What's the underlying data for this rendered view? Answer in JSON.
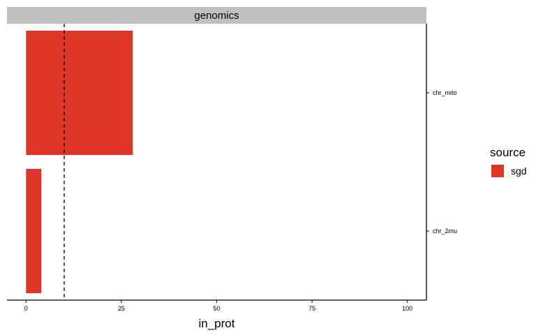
{
  "chart_data": {
    "type": "bar",
    "orientation": "horizontal",
    "facet_label": "genomics",
    "categories": [
      "chr_mito",
      "chr_2mu"
    ],
    "series": [
      {
        "name": "sgd",
        "values": [
          28,
          4
        ]
      }
    ],
    "xlabel": "in_prot",
    "ylabel": "",
    "xlim": [
      -5,
      105
    ],
    "x_ticks": [
      0,
      25,
      50,
      75,
      100
    ],
    "reference_line": {
      "x": 10,
      "style": "dashed"
    },
    "y_axis_position": "right",
    "grid": false,
    "legend": {
      "title": "source",
      "position": "right"
    },
    "colors": {
      "sgd": "#de3529",
      "strip": "#c0c0c0"
    }
  }
}
